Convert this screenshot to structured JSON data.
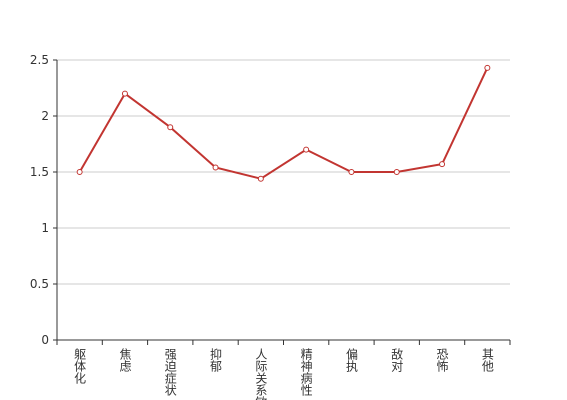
{
  "chart_data": {
    "type": "line",
    "categories": [
      "躯体化",
      "焦虑",
      "强迫症状",
      "抑郁",
      "人际关系敏感",
      "精神病性",
      "偏执",
      "敌对",
      "恐怖",
      "其他"
    ],
    "values": [
      1.5,
      2.2,
      1.9,
      1.54,
      1.44,
      1.7,
      1.5,
      1.5,
      1.57,
      2.43
    ],
    "color": "#c23531",
    "ylim": [
      0,
      2.5
    ],
    "yticks": [
      0,
      0.5,
      1,
      1.5,
      2,
      2.5
    ],
    "grid": true
  }
}
